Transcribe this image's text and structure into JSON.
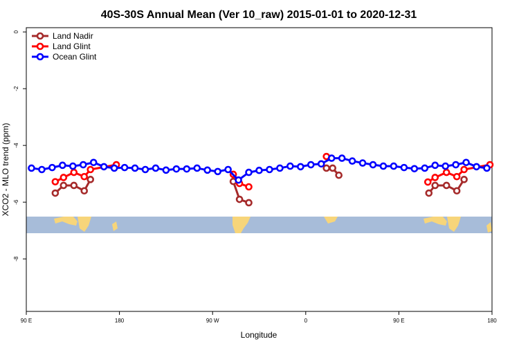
{
  "chart_data": {
    "type": "line",
    "title": "40S-30S Annual Mean (Ver 10_raw)   2015-01-01 to 2020-12-31",
    "x_label": "Longitude",
    "y_label": "XCO2 - MLO trend (ppm)",
    "xlim": [
      90,
      540
    ],
    "xticks": [
      {
        "value": 90,
        "label": "90 E"
      },
      180,
      {
        "value": 270,
        "label": "90 W"
      },
      {
        "value": 360,
        "label": "0"
      },
      {
        "value": 450,
        "label": "90 E"
      },
      {
        "value": 540,
        "label": "180"
      }
    ],
    "ylim": [
      -9.85,
      0.15
    ],
    "yticks": [
      0,
      -2,
      -4,
      -6,
      -8
    ],
    "legend": "top-left",
    "series": [
      {
        "name": "Land Nadir",
        "color": "#a52a2a",
        "x": [
          118,
          126,
          136,
          146,
          152,
          null,
          290,
          296,
          305,
          null,
          380,
          386,
          392,
          null,
          479,
          485,
          496,
          506,
          513
        ],
        "values": [
          -5.68,
          -5.41,
          -5.41,
          -5.6,
          -5.2,
          null,
          -5.27,
          -5.9,
          -6.02,
          null,
          -4.8,
          -4.8,
          -5.05,
          null,
          -5.68,
          -5.41,
          -5.41,
          -5.6,
          -5.2
        ]
      },
      {
        "name": "Land Glint",
        "color": "#ff0000",
        "x": [
          118,
          126,
          136,
          146,
          152,
          177,
          null,
          290,
          296,
          305,
          null,
          380,
          null,
          478,
          485,
          496,
          506,
          513,
          538
        ],
        "values": [
          -5.28,
          -5.13,
          -4.95,
          -5.1,
          -4.85,
          -4.68,
          null,
          -5.02,
          -5.34,
          -5.46,
          null,
          -4.39,
          null,
          -5.29,
          -5.13,
          -4.95,
          -5.1,
          -4.85,
          -4.68
        ]
      },
      {
        "name": "Ocean Glint",
        "color": "#0000ff",
        "x": [
          95,
          105,
          115,
          125,
          135,
          145,
          155,
          165,
          175,
          185,
          195,
          205,
          215,
          225,
          235,
          245,
          255,
          265,
          275,
          285,
          295,
          305,
          315,
          325,
          335,
          345,
          355,
          365,
          375,
          385,
          395,
          405,
          415,
          425,
          435,
          445,
          455,
          465,
          475,
          485,
          495,
          505,
          515,
          525,
          535
        ],
        "values": [
          -4.8,
          -4.85,
          -4.78,
          -4.7,
          -4.73,
          -4.68,
          -4.6,
          -4.75,
          -4.8,
          -4.78,
          -4.8,
          -4.85,
          -4.8,
          -4.87,
          -4.83,
          -4.83,
          -4.8,
          -4.87,
          -4.92,
          -4.85,
          -5.22,
          -4.95,
          -4.88,
          -4.85,
          -4.8,
          -4.73,
          -4.75,
          -4.68,
          -4.65,
          -4.45,
          -4.45,
          -4.55,
          -4.62,
          -4.68,
          -4.73,
          -4.73,
          -4.78,
          -4.82,
          -4.8,
          -4.7,
          -4.73,
          -4.68,
          -4.6,
          -4.75,
          -4.8
        ]
      }
    ]
  }
}
